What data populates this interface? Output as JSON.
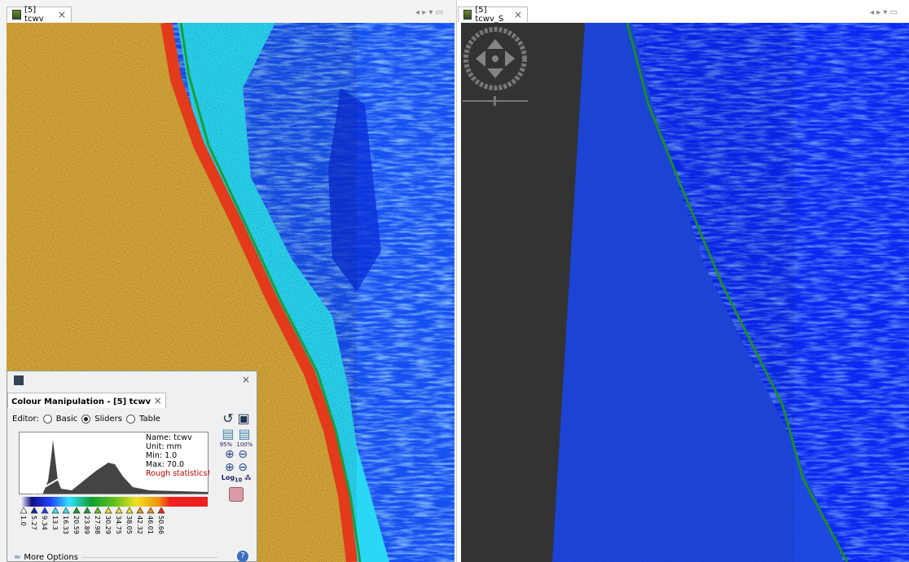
{
  "left_view": {
    "tab": "[5] tcwv"
  },
  "right_view": {
    "tab": "[5] tcwv_S"
  },
  "colour_manipulation": {
    "tab": "Colour Manipulation - [5] tcwv",
    "editor_label": "Editor:",
    "editor_options": [
      "Basic",
      "Sliders",
      "Table"
    ],
    "info": [
      "Name: tcwv",
      "Unit: mm",
      "Min: 1.0",
      "Max: 70.0"
    ],
    "warning": "Rough statistics!",
    "slider_labels": [
      "1.0",
      "5.27",
      "9.34",
      "13.3",
      "16.33",
      "20.59",
      "23.89",
      "27.98",
      "30.29",
      "34.75",
      "38.05",
      "42.32",
      "46.01",
      "50.66"
    ],
    "zoom_labels": [
      "95%",
      "100%"
    ],
    "log_label": "Log",
    "log_base": "10",
    "more_options": "More Options"
  }
}
